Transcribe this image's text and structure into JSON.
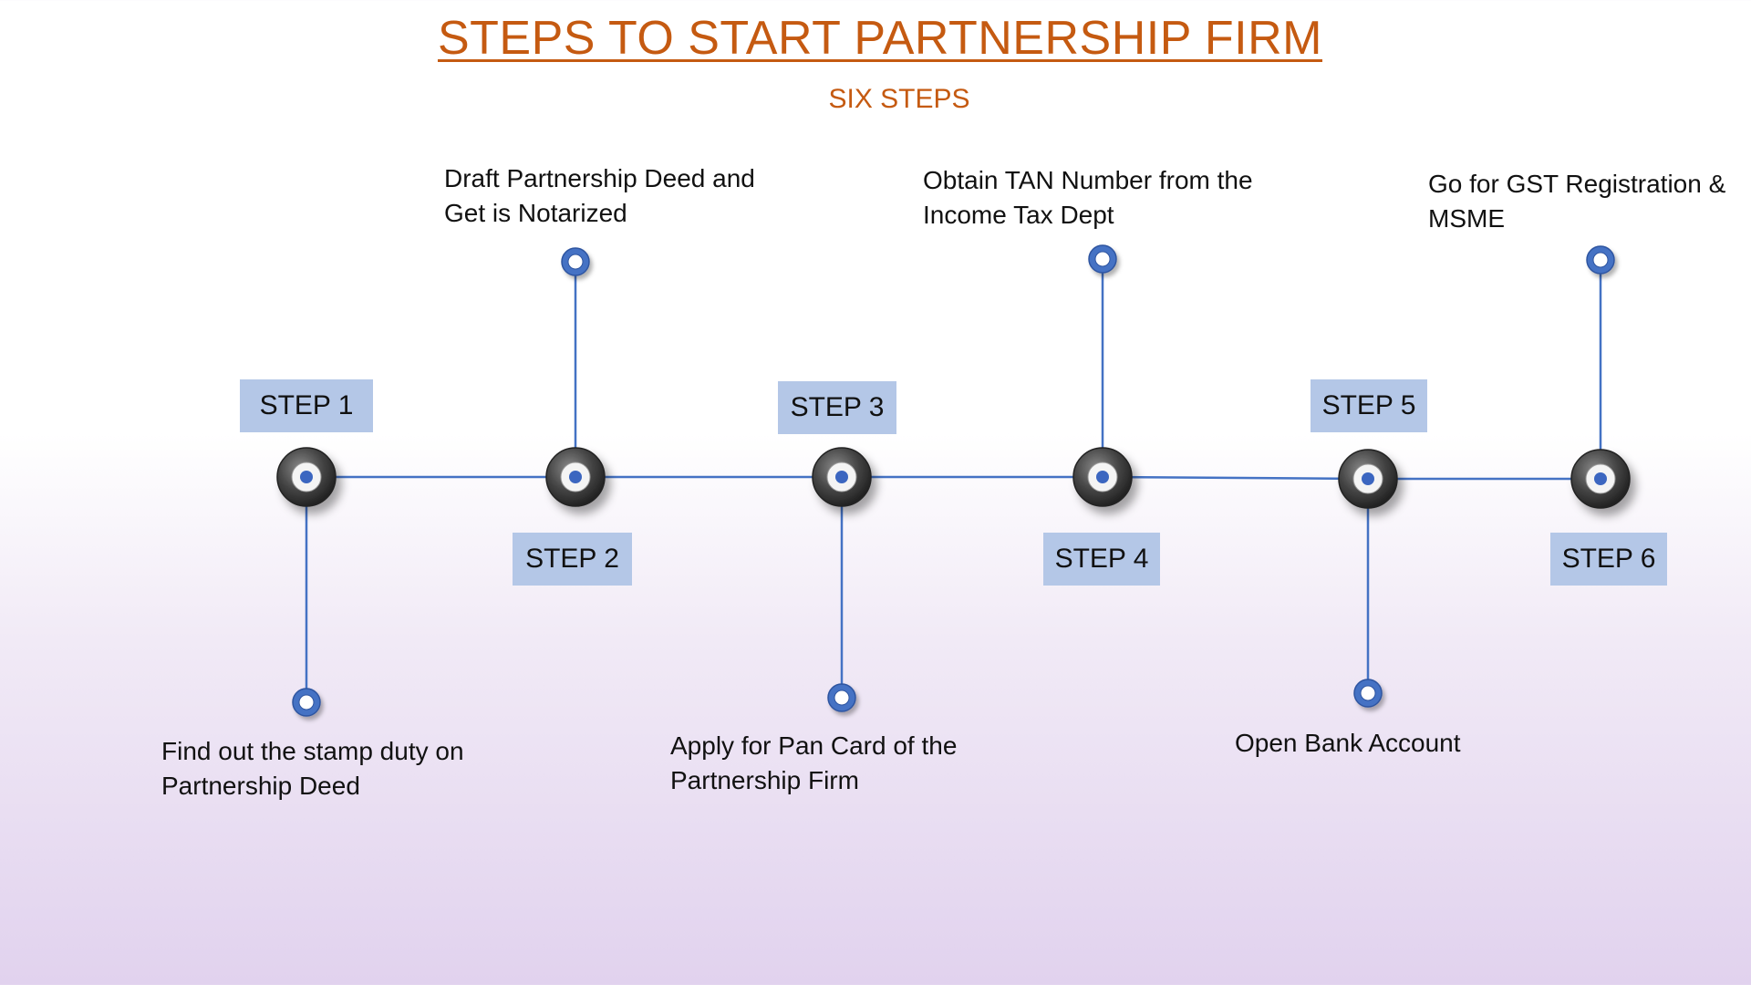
{
  "title": "STEPS TO START PARTNERSHIP FIRM",
  "subtitle": "SIX STEPS",
  "colors": {
    "title": "#c55a11",
    "line": "#4472c4",
    "label_bg": "#b4c7e7"
  },
  "steps": [
    {
      "label": "STEP 1",
      "description": "Find out the stamp duty on Partnership Deed"
    },
    {
      "label": "STEP 2",
      "description": "Draft Partnership Deed and Get is Notarized"
    },
    {
      "label": "STEP 3",
      "description": "Apply for Pan Card of the Partnership Firm"
    },
    {
      "label": "STEP 4",
      "description": "Obtain TAN Number from the Income Tax Dept"
    },
    {
      "label": "STEP 5",
      "description": "Open Bank Account"
    },
    {
      "label": "STEP 6",
      "description": "Go for GST Registration & MSME"
    }
  ]
}
